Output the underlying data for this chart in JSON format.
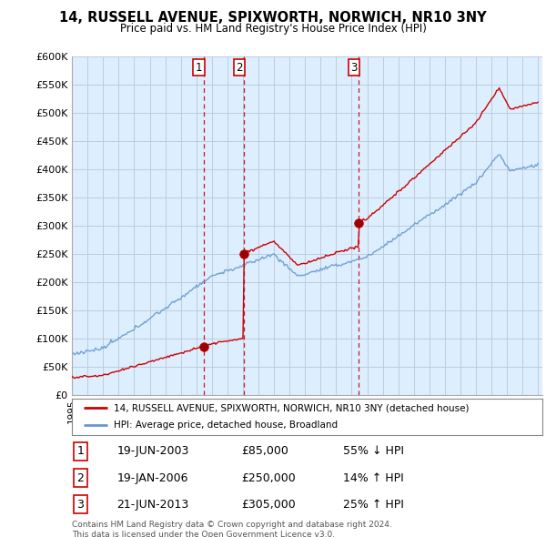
{
  "title": "14, RUSSELL AVENUE, SPIXWORTH, NORWICH, NR10 3NY",
  "subtitle": "Price paid vs. HM Land Registry's House Price Index (HPI)",
  "ylim": [
    0,
    600000
  ],
  "yticks": [
    0,
    50000,
    100000,
    150000,
    200000,
    250000,
    300000,
    350000,
    400000,
    450000,
    500000,
    550000,
    600000
  ],
  "ytick_labels": [
    "£0",
    "£50K",
    "£100K",
    "£150K",
    "£200K",
    "£250K",
    "£300K",
    "£350K",
    "£400K",
    "£450K",
    "£500K",
    "£550K",
    "£600K"
  ],
  "sale_color": "#cc0000",
  "hpi_color": "#6699cc",
  "chart_bg": "#ddeeff",
  "sale_label": "14, RUSSELL AVENUE, SPIXWORTH, NORWICH, NR10 3NY (detached house)",
  "hpi_label": "HPI: Average price, detached house, Broadland",
  "transactions": [
    {
      "num": 1,
      "date": "19-JUN-2003",
      "price": 85000,
      "hpi_rel": "55% ↓ HPI",
      "x": 2003.46
    },
    {
      "num": 2,
      "date": "19-JAN-2006",
      "price": 250000,
      "hpi_rel": "14% ↑ HPI",
      "x": 2006.05
    },
    {
      "num": 3,
      "date": "21-JUN-2013",
      "price": 305000,
      "hpi_rel": "25% ↑ HPI",
      "x": 2013.47
    }
  ],
  "footer": "Contains HM Land Registry data © Crown copyright and database right 2024.\nThis data is licensed under the Open Government Licence v3.0.",
  "background_color": "#ffffff",
  "grid_color": "#bbccdd"
}
